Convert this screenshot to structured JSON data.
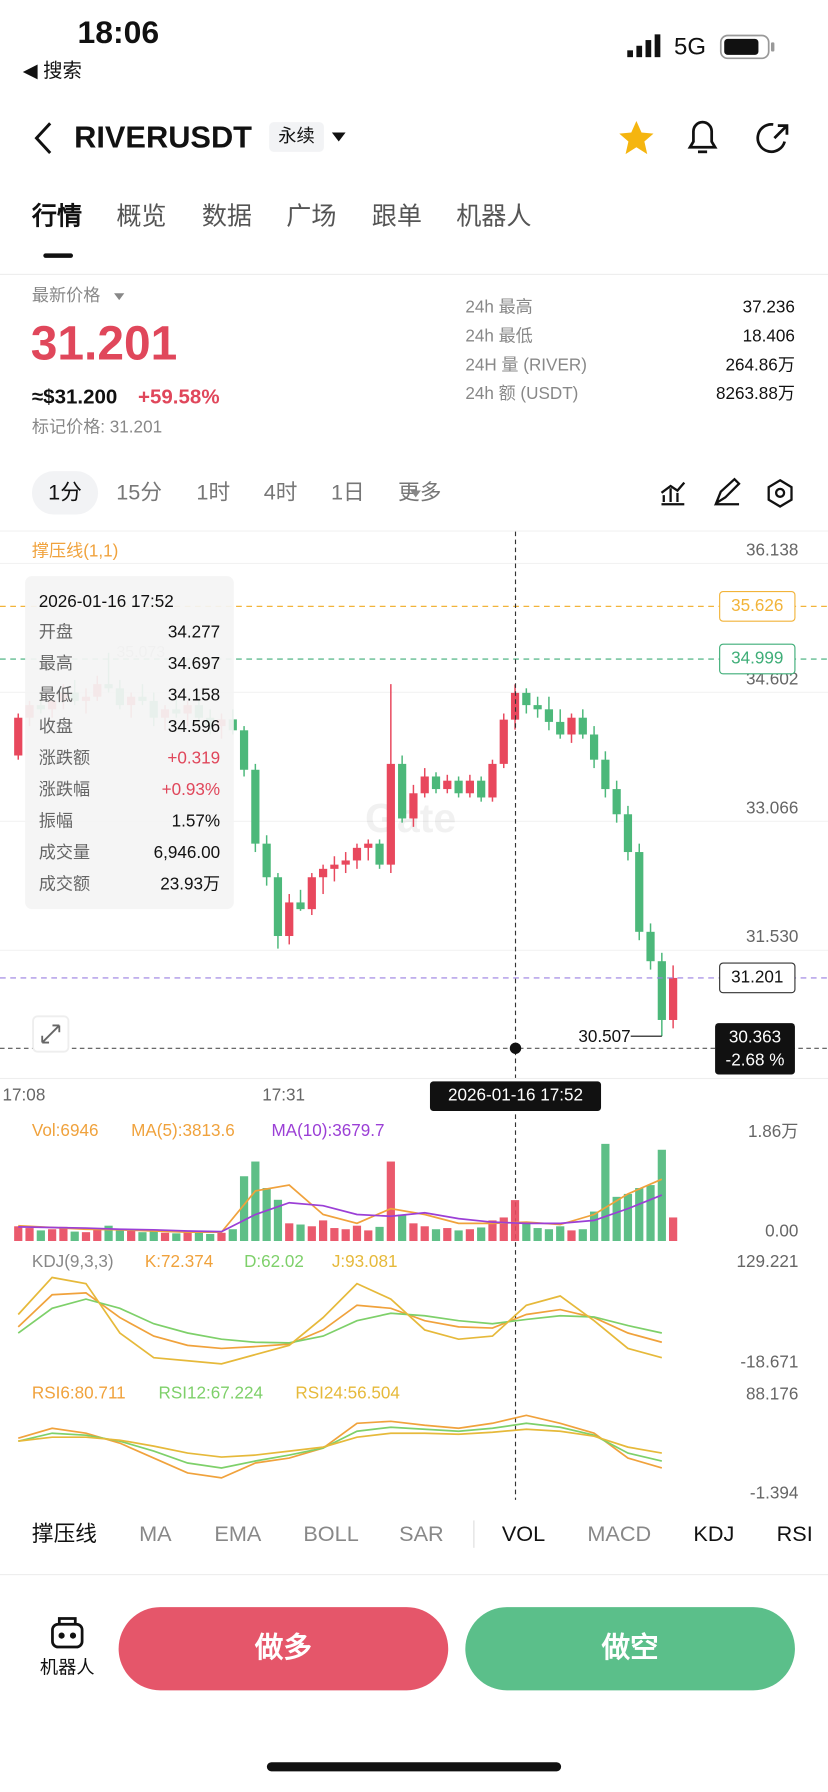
{
  "status_bar": {
    "time": "18:06",
    "back": "◀ 搜索",
    "network": "5G"
  },
  "header": {
    "symbol": "RIVERUSDT",
    "badge": "永续"
  },
  "tabs": [
    "行情",
    "概览",
    "数据",
    "广场",
    "跟单",
    "机器人"
  ],
  "price": {
    "label": "最新价格",
    "last": "31.201",
    "approx": "≈$31.200",
    "change": "+59.58%",
    "mark": "标记价格: 31.201"
  },
  "stats": [
    {
      "label": "24h  最高",
      "value": "37.236"
    },
    {
      "label": "24h  最低",
      "value": "18.406"
    },
    {
      "label": "24H  量 (RIVER)",
      "value": "264.86万"
    },
    {
      "label": "24h  额 (USDT)",
      "value": "8263.88万"
    }
  ],
  "intervals": [
    "1分",
    "15分",
    "1时",
    "4时",
    "1日",
    "更多"
  ],
  "chart": {
    "type": "candlestick",
    "indicator": "撑压线(1,1)",
    "watermark": "Gate",
    "ylim": [
      30.01,
      36.53
    ],
    "yticks": [
      36.138,
      34.602,
      33.066,
      {
        "value": 31.53,
        "label": "31.530"
      }
    ],
    "categories": [
      "17:08",
      null,
      null,
      null,
      null,
      null,
      null,
      null,
      null,
      null,
      null,
      null,
      null,
      null,
      null,
      null,
      null,
      null,
      null,
      null,
      null,
      null,
      null,
      "17:31",
      null,
      null,
      null,
      null,
      null,
      null,
      null,
      null,
      null,
      null,
      null,
      null,
      null,
      null,
      null,
      null,
      null,
      null,
      null,
      null,
      null,
      null,
      null,
      null,
      null,
      null,
      null,
      null,
      null,
      null,
      null,
      null,
      null,
      null,
      null
    ],
    "open": [
      33.85,
      34.3,
      34.45,
      34.4,
      34.5,
      34.6,
      34.5,
      34.55,
      34.7,
      34.65,
      34.45,
      34.55,
      34.5,
      34.3,
      34.4,
      34.35,
      34.45,
      34.3,
      34.2,
      34.28,
      34.15,
      33.68,
      32.8,
      32.4,
      31.7,
      32.1,
      32.02,
      32.4,
      32.5,
      32.55,
      32.6,
      32.75,
      32.8,
      32.55,
      33.75,
      33.1,
      33.4,
      33.6,
      33.45,
      33.55,
      33.4,
      33.55,
      33.35,
      33.75,
      34.277,
      34.596,
      34.45,
      34.4,
      34.25,
      34.1,
      34.3,
      34.1,
      33.8,
      33.45,
      33.15,
      32.7,
      31.75,
      31.4,
      30.7
    ],
    "high": [
      34.35,
      34.5,
      34.6,
      34.55,
      34.7,
      34.75,
      34.65,
      34.8,
      35.073,
      34.75,
      34.6,
      34.7,
      34.6,
      34.45,
      34.55,
      34.5,
      34.55,
      34.4,
      34.35,
      34.4,
      34.2,
      33.75,
      32.9,
      32.45,
      32.2,
      32.25,
      32.45,
      32.55,
      32.65,
      32.7,
      32.8,
      32.85,
      32.85,
      34.7,
      33.85,
      33.5,
      33.7,
      33.65,
      33.62,
      33.6,
      33.62,
      33.6,
      33.8,
      34.35,
      34.697,
      34.65,
      34.55,
      34.55,
      34.4,
      34.35,
      34.4,
      34.2,
      33.9,
      33.55,
      33.25,
      32.8,
      31.85,
      31.5,
      31.35
    ],
    "low": [
      33.8,
      34.2,
      34.35,
      34.3,
      34.4,
      34.45,
      34.35,
      34.5,
      34.6,
      34.4,
      34.3,
      34.45,
      34.2,
      34.15,
      34.3,
      34.2,
      34.25,
      34.1,
      34.05,
      34.1,
      33.6,
      32.7,
      32.3,
      31.55,
      31.6,
      32.0,
      31.95,
      32.2,
      32.35,
      32.45,
      32.5,
      32.6,
      32.5,
      32.45,
      33.05,
      33.0,
      33.35,
      33.4,
      33.4,
      33.35,
      33.35,
      33.3,
      33.3,
      33.7,
      34.158,
      34.35,
      34.3,
      34.15,
      34.05,
      34.0,
      34.05,
      33.7,
      33.35,
      33.05,
      32.6,
      31.65,
      31.3,
      30.507,
      30.6
    ],
    "close": [
      34.3,
      34.45,
      34.4,
      34.5,
      34.6,
      34.5,
      34.55,
      34.7,
      34.65,
      34.45,
      34.55,
      34.5,
      34.3,
      34.4,
      34.35,
      34.45,
      34.3,
      34.2,
      34.28,
      34.15,
      33.68,
      32.8,
      32.4,
      31.7,
      32.1,
      32.02,
      32.4,
      32.5,
      32.55,
      32.6,
      32.75,
      32.8,
      32.55,
      33.75,
      33.1,
      33.4,
      33.6,
      33.45,
      33.55,
      33.4,
      33.55,
      33.35,
      33.75,
      34.277,
      34.596,
      34.45,
      34.4,
      34.25,
      34.1,
      34.3,
      34.1,
      33.8,
      33.45,
      33.15,
      32.7,
      31.75,
      31.4,
      30.7,
      31.201
    ],
    "colors": {
      "up": "#e8485d",
      "down": "#4cb87a"
    },
    "levels": [
      {
        "value": 35.626,
        "color": "#f2b43a"
      },
      {
        "value": 34.999,
        "color": "#3fae78"
      },
      {
        "value": 31.201,
        "color": "#9a7fe0"
      }
    ],
    "high_marker": 35.073,
    "low_marker": 30.507,
    "crosshair": {
      "price": 30.363,
      "change": "-2.68 %",
      "time": "2026-01-16 17:52"
    },
    "tooltip": {
      "time": "2026-01-16 17:52",
      "rows": [
        [
          "开盘",
          "34.277"
        ],
        [
          "最高",
          "34.697"
        ],
        [
          "最低",
          "34.158"
        ],
        [
          "收盘",
          "34.596"
        ],
        [
          "涨跌额",
          "+0.319"
        ],
        [
          "涨跌幅",
          "+0.93%"
        ],
        [
          "振幅",
          "1.57%"
        ],
        [
          "成交量",
          "6,946.00"
        ],
        [
          "成交额",
          "23.93万"
        ]
      ]
    }
  },
  "volume": {
    "label": "Vol:6946",
    "ylim": [
      0,
      18600
    ],
    "yticks": [
      {
        "value": 18600,
        "label": "1.86万"
      },
      {
        "value": 0,
        "label": "0.00"
      }
    ],
    "values": [
      2500,
      2200,
      1800,
      2000,
      2400,
      1600,
      1500,
      1900,
      2600,
      2100,
      1700,
      1500,
      1800,
      1400,
      1300,
      1600,
      1500,
      1200,
      1400,
      2000,
      11000,
      13500,
      9000,
      7000,
      3000,
      2800,
      2500,
      3500,
      2200,
      2000,
      2600,
      1800,
      2400,
      13500,
      4500,
      3000,
      2500,
      2000,
      2200,
      1800,
      2000,
      2300,
      3500,
      4000,
      6946,
      3000,
      2200,
      2000,
      2500,
      1800,
      2000,
      5000,
      16500,
      7500,
      8000,
      9000,
      9500,
      15500,
      4000
    ],
    "series": [
      {
        "name": "MA(5):3813.6",
        "color": "#f0a23c",
        "values": [
          2600,
          2300,
          2000,
          1900,
          1700,
          1500,
          1500,
          8500,
          9500,
          4500,
          3000,
          5500,
          4500,
          3000,
          3000,
          3200,
          2800,
          4500,
          8000,
          10500
        ]
      },
      {
        "name": "MA(10):3679.7",
        "color": "#9b3fd6",
        "values": [
          2400,
          2300,
          2200,
          2000,
          1900,
          1700,
          1600,
          4500,
          6500,
          6000,
          4500,
          4200,
          4800,
          3800,
          3200,
          3000,
          3000,
          3500,
          5500,
          7800
        ]
      }
    ]
  },
  "kdj": {
    "label": "KDJ(9,3,3)",
    "ylim": [
      -18.671,
      129.221
    ],
    "yticks": [
      129.221,
      -18.671
    ],
    "series": [
      {
        "name": "K:72.374",
        "color": "#f0a23c",
        "values": [
          40,
          92,
          95,
          55,
          25,
          10,
          5,
          8,
          12,
          35,
          75,
          70,
          50,
          40,
          38,
          60,
          68,
          55,
          30,
          15
        ]
      },
      {
        "name": "D:62.02",
        "color": "#7ed06a",
        "values": [
          30,
          70,
          85,
          70,
          45,
          30,
          20,
          15,
          14,
          25,
          50,
          62,
          58,
          50,
          45,
          52,
          58,
          56,
          42,
          30
        ]
      },
      {
        "name": "J:93.081",
        "color": "#e6b93a",
        "values": [
          60,
          120,
          110,
          30,
          -10,
          -15,
          -20,
          -5,
          10,
          55,
          110,
          85,
          35,
          20,
          25,
          75,
          90,
          50,
          5,
          -10
        ]
      }
    ]
  },
  "rsi": {
    "ylim": [
      -1.394,
      88.176
    ],
    "yticks": [
      88.176,
      -1.394
    ],
    "series": [
      {
        "name": "RSI6:80.711",
        "color": "#f0a23c",
        "values": [
          55,
          65,
          60,
          50,
          35,
          20,
          15,
          30,
          35,
          45,
          70,
          72,
          68,
          65,
          70,
          78,
          70,
          60,
          35,
          25
        ]
      },
      {
        "name": "RSI12:67.224",
        "color": "#7ed06a",
        "values": [
          52,
          60,
          58,
          52,
          42,
          30,
          25,
          32,
          38,
          45,
          62,
          66,
          64,
          62,
          65,
          70,
          66,
          58,
          40,
          32
        ]
      },
      {
        "name": "RSI24:56.504",
        "color": "#e6b93a",
        "values": [
          52,
          56,
          56,
          53,
          47,
          40,
          36,
          38,
          42,
          46,
          56,
          60,
          60,
          59,
          61,
          64,
          62,
          57,
          46,
          40
        ]
      }
    ]
  },
  "indicator_tabs": [
    {
      "label": "撑压线",
      "active": true
    },
    {
      "label": "MA",
      "active": false
    },
    {
      "label": "EMA",
      "active": false
    },
    {
      "label": "BOLL",
      "active": false
    },
    {
      "label": "SAR",
      "active": false
    },
    {
      "label": "VOL",
      "active": true
    },
    {
      "label": "MACD",
      "active": false
    },
    {
      "label": "KDJ",
      "active": true
    },
    {
      "label": "RSI",
      "active": true
    }
  ],
  "actions": {
    "robot": "机器人",
    "long": "做多",
    "short": "做空"
  }
}
